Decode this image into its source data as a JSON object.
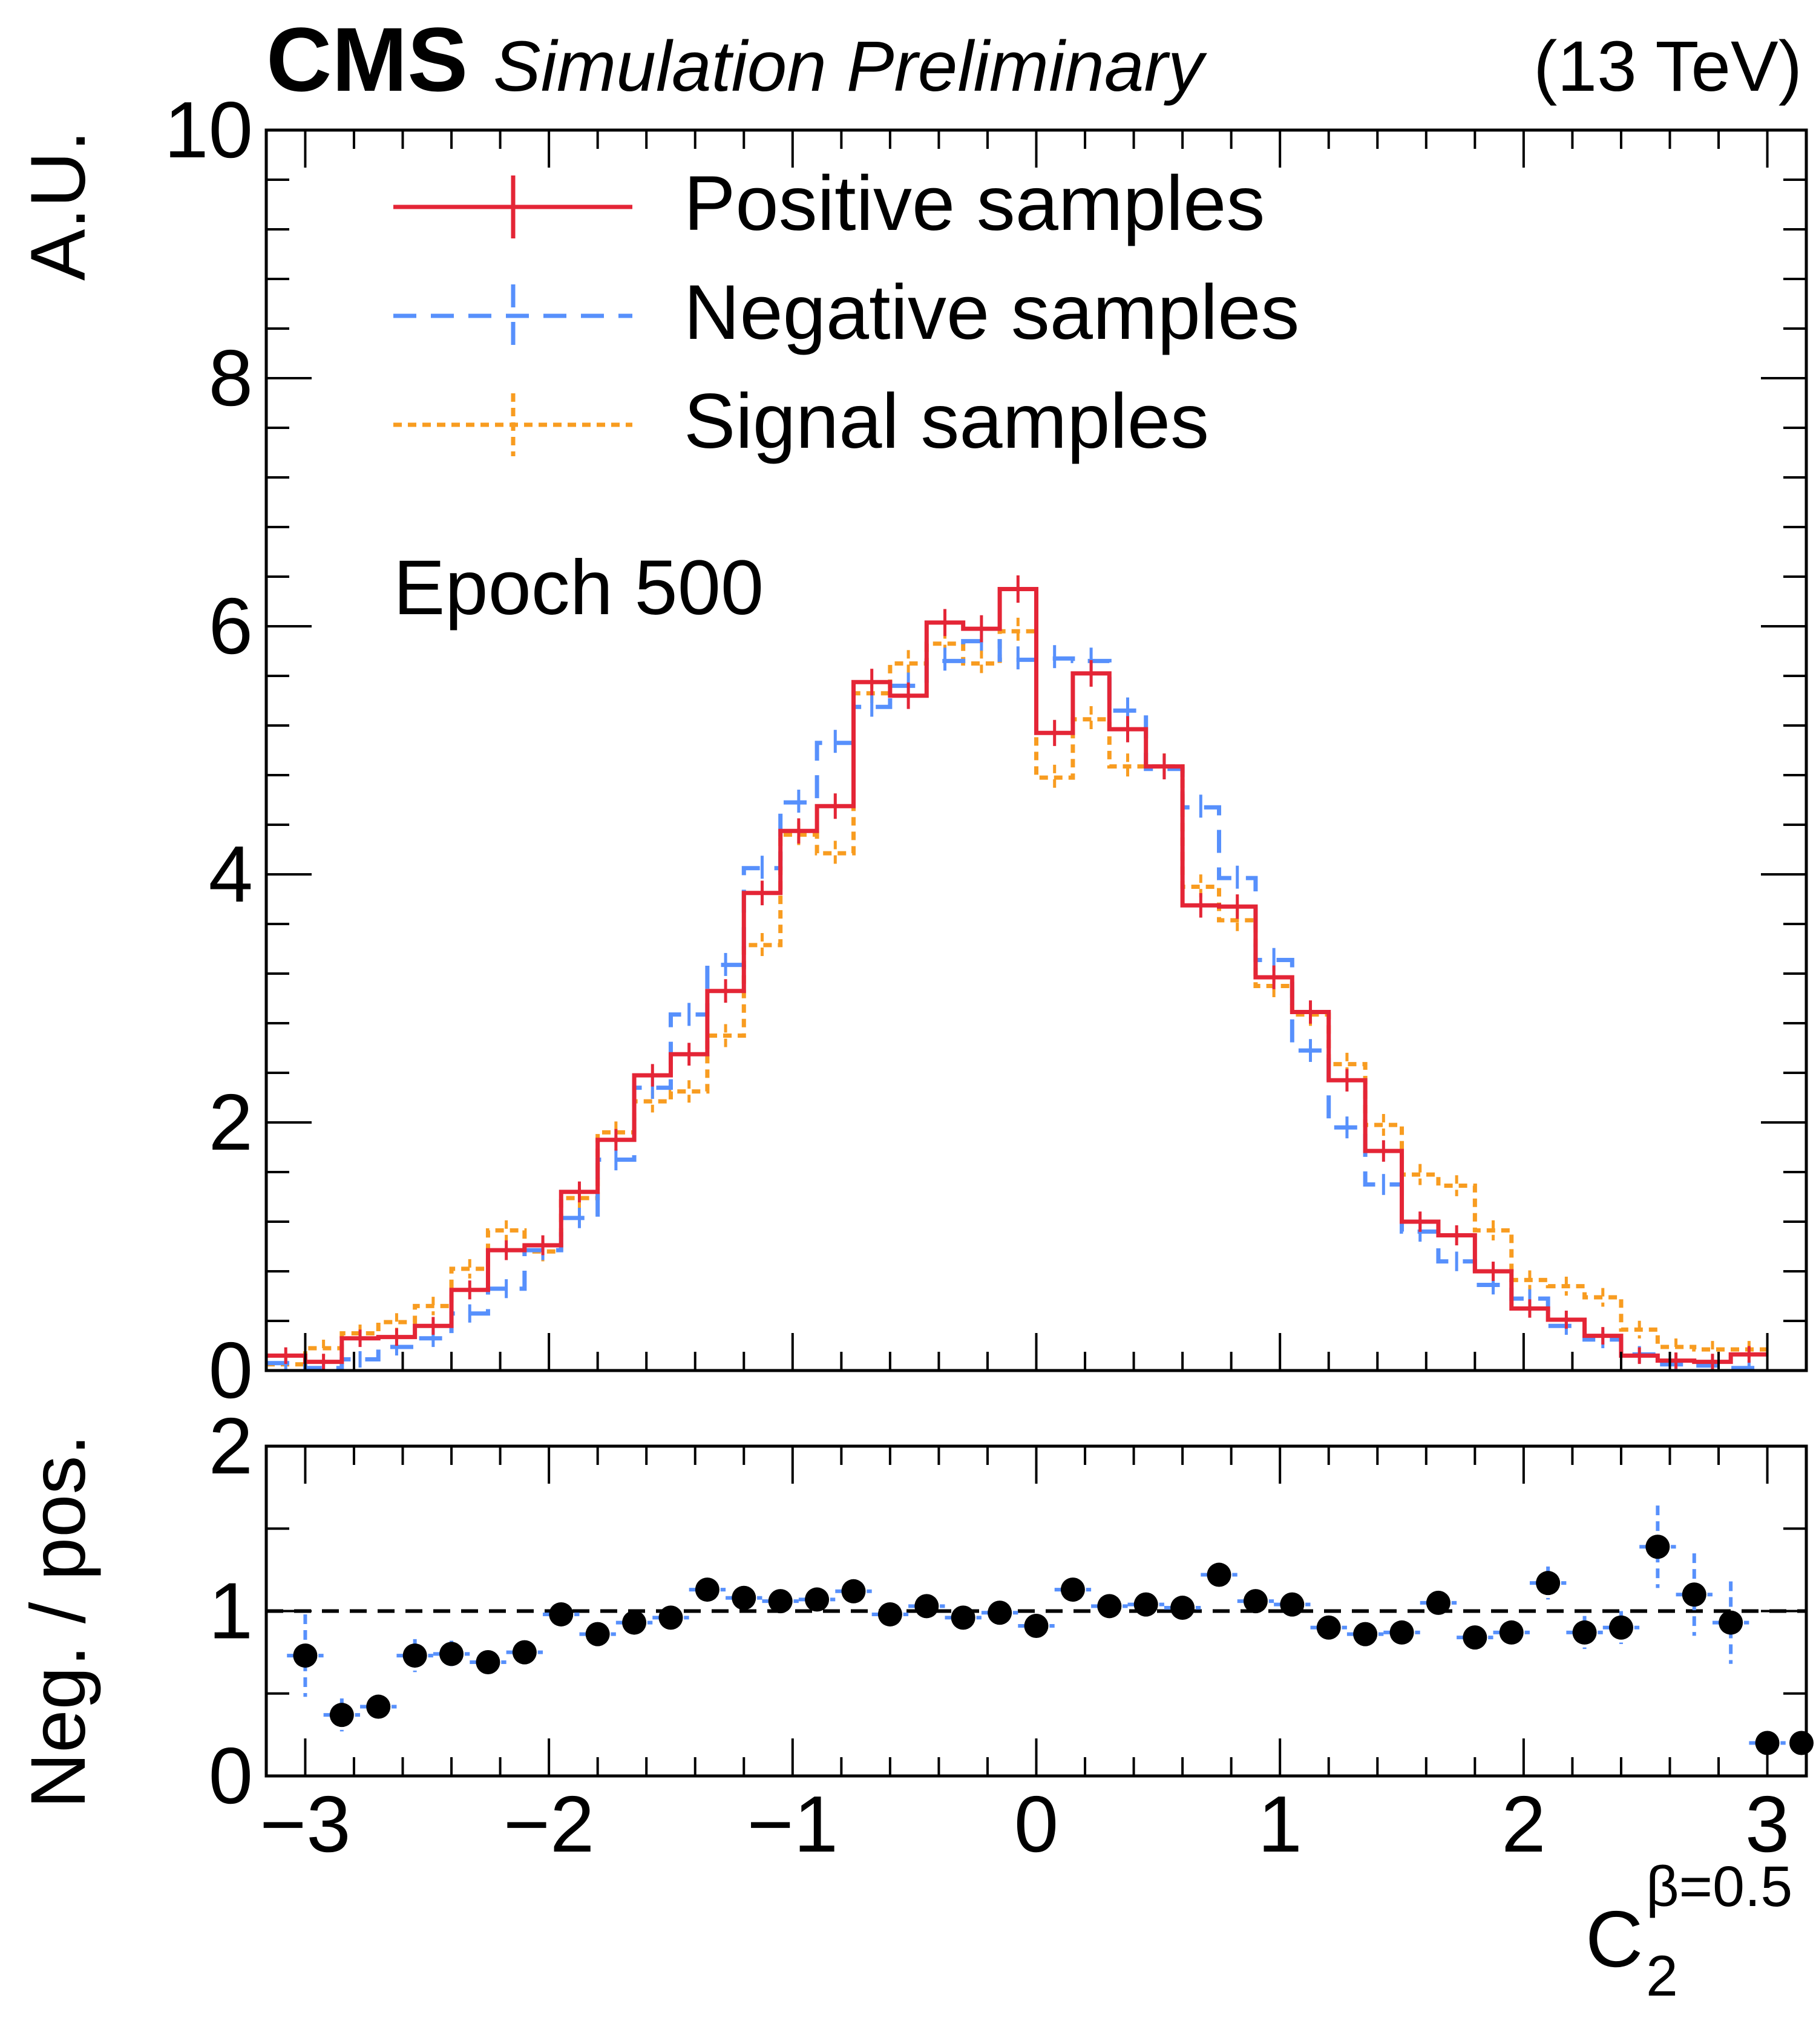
{
  "colors": {
    "positive": "#e42536",
    "negative": "#5790fc",
    "signal": "#f89c20",
    "ratio_marker": "#000000"
  },
  "header": {
    "cms": "CMS",
    "status": "Simulation Preliminary",
    "energy": "(13 TeV)"
  },
  "annotation": "Epoch 500",
  "chart_data": [
    {
      "type": "line",
      "title": "",
      "xlabel": "C",
      "xlabel_sub": "2",
      "xlabel_sup": "β=0.5",
      "ylabel": "A.U.",
      "xlim": [
        -3.16,
        3.16
      ],
      "ylim": [
        0,
        10
      ],
      "yticks": [
        "0",
        "2",
        "4",
        "6",
        "8",
        "10"
      ],
      "xticks": [
        "−3",
        "−2",
        "−1",
        "0",
        "1",
        "2",
        "3"
      ],
      "legend": "top-left",
      "x_edges": [
        -3.16,
        -3.0,
        -2.85,
        -2.7,
        -2.55,
        -2.4,
        -2.25,
        -2.1,
        -1.95,
        -1.8,
        -1.65,
        -1.5,
        -1.35,
        -1.2,
        -1.05,
        -0.9,
        -0.75,
        -0.6,
        -0.45,
        -0.3,
        -0.15,
        0.0,
        0.15,
        0.3,
        0.45,
        0.6,
        0.75,
        0.9,
        1.05,
        1.2,
        1.35,
        1.5,
        1.65,
        1.8,
        1.95,
        2.1,
        2.25,
        2.4,
        2.55,
        2.7,
        2.85,
        3.0,
        3.16
      ],
      "series": [
        {
          "name": "Positive samples",
          "style": "solid",
          "values": [
            0.12,
            0.07,
            0.26,
            0.27,
            0.36,
            0.65,
            0.97,
            1.01,
            1.44,
            1.86,
            2.38,
            2.55,
            3.06,
            3.85,
            4.35,
            4.55,
            5.55,
            5.44,
            6.03,
            5.98,
            6.3,
            5.14,
            5.62,
            5.17,
            4.87,
            3.75,
            3.74,
            3.17,
            2.89,
            2.34,
            1.77,
            1.2,
            1.09,
            0.8,
            0.5,
            0.41,
            0.28,
            0.12,
            0.08,
            0.07,
            0.13
          ]
        },
        {
          "name": "Negative samples",
          "style": "dashed",
          "values": [
            0.06,
            0.02,
            0.09,
            0.19,
            0.26,
            0.46,
            0.66,
            0.97,
            1.23,
            1.7,
            2.28,
            2.87,
            3.27,
            4.05,
            4.58,
            5.06,
            5.35,
            5.52,
            5.72,
            5.88,
            5.73,
            5.74,
            5.72,
            5.32,
            4.85,
            4.54,
            3.97,
            3.31,
            2.58,
            1.96,
            1.5,
            1.12,
            0.88,
            0.69,
            0.58,
            0.36,
            0.25,
            0.13,
            0.05,
            0.04,
            0.02
          ]
        },
        {
          "name": "Signal samples",
          "style": "dotted",
          "values": [
            0.05,
            0.18,
            0.3,
            0.39,
            0.52,
            0.82,
            1.13,
            0.96,
            1.39,
            1.92,
            2.17,
            2.25,
            2.7,
            3.43,
            4.32,
            4.17,
            5.46,
            5.7,
            5.86,
            5.7,
            5.96,
            4.78,
            5.25,
            4.87,
            4.87,
            3.9,
            3.63,
            3.1,
            2.87,
            2.47,
            1.98,
            1.58,
            1.49,
            1.13,
            0.73,
            0.68,
            0.59,
            0.33,
            0.19,
            0.17,
            0.17
          ]
        }
      ]
    },
    {
      "type": "scatter",
      "title": "",
      "xlabel": "",
      "ylabel": "Neg. / pos.",
      "xlim": [
        -3.16,
        3.16
      ],
      "ylim": [
        0,
        2
      ],
      "yticks": [
        "0",
        "1",
        "2"
      ],
      "reference_line": 1,
      "series": [
        {
          "name": "Neg. / pos.",
          "x": [
            -3.0,
            -2.85,
            -2.7,
            -2.55,
            -2.4,
            -2.25,
            -2.1,
            -1.95,
            -1.8,
            -1.65,
            -1.5,
            -1.35,
            -1.2,
            -1.05,
            -0.9,
            -0.75,
            -0.6,
            -0.45,
            -0.3,
            -0.15,
            0.0,
            0.15,
            0.3,
            0.45,
            0.6,
            0.75,
            0.9,
            1.05,
            1.2,
            1.35,
            1.5,
            1.65,
            1.8,
            1.95,
            2.1,
            2.25,
            2.4,
            2.55,
            2.7,
            2.85,
            3.0,
            3.16
          ],
          "values": [
            0.73,
            0.37,
            0.42,
            0.73,
            0.74,
            0.69,
            0.75,
            0.98,
            0.86,
            0.93,
            0.96,
            1.13,
            1.08,
            1.06,
            1.07,
            1.12,
            0.98,
            1.03,
            0.96,
            0.99,
            0.91,
            1.13,
            1.03,
            1.04,
            1.02,
            1.22,
            1.06,
            1.04,
            0.9,
            0.86,
            0.87,
            1.05,
            0.84,
            0.87,
            1.17,
            0.87,
            0.9,
            1.39,
            1.1,
            0.93,
            0.2,
            0.2
          ],
          "errors": [
            0.25,
            0.1,
            0.06,
            0.1,
            0.08,
            0.06,
            0.05,
            0.05,
            0.04,
            0.04,
            0.03,
            0.03,
            0.03,
            0.02,
            0.02,
            0.02,
            0.02,
            0.02,
            0.02,
            0.02,
            0.02,
            0.02,
            0.02,
            0.02,
            0.02,
            0.02,
            0.02,
            0.03,
            0.03,
            0.03,
            0.04,
            0.04,
            0.05,
            0.05,
            0.1,
            0.1,
            0.1,
            0.25,
            0.25,
            0.25,
            0.0,
            0.0
          ]
        }
      ]
    }
  ]
}
